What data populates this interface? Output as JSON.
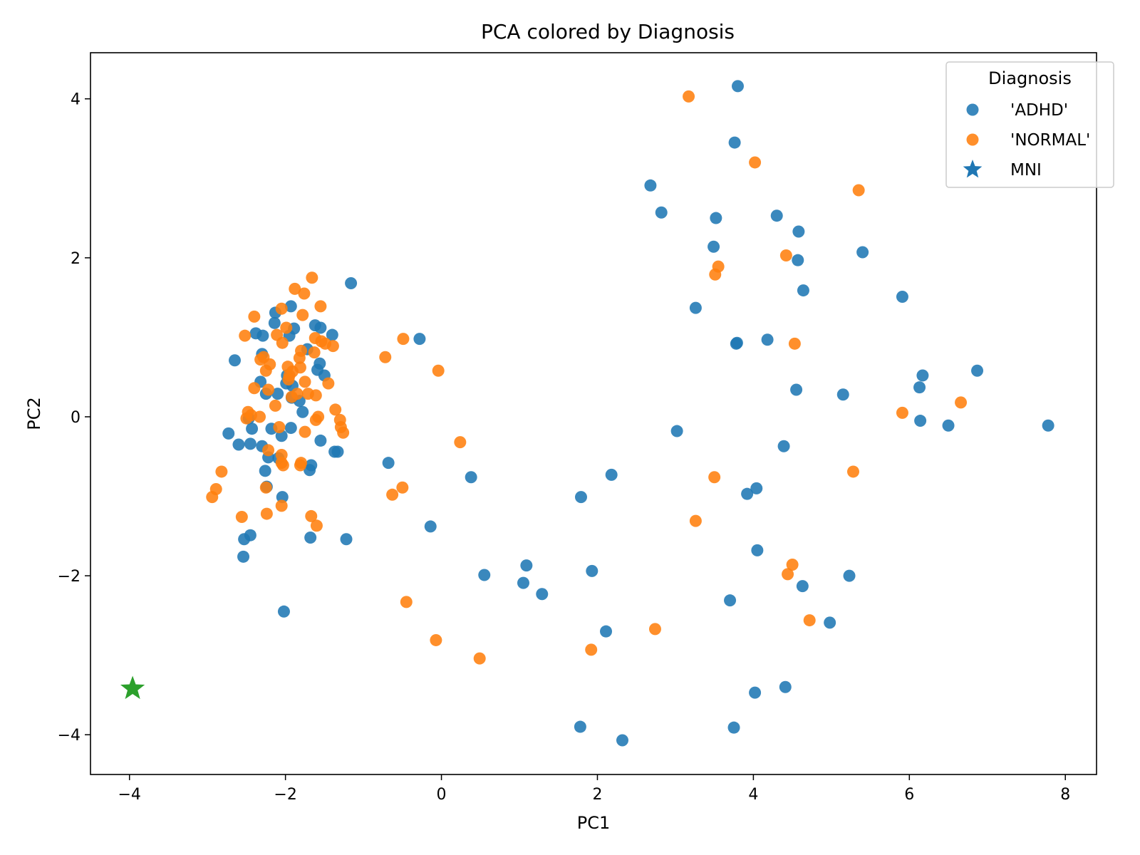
{
  "chart_data": {
    "type": "scatter",
    "title": "PCA colored by Diagnosis",
    "xlabel": "PC1",
    "ylabel": "PC2",
    "xlim": [
      -4.5,
      8.4
    ],
    "ylim": [
      -4.5,
      4.58
    ],
    "xticks": [
      -4,
      -2,
      0,
      2,
      4,
      6,
      8
    ],
    "yticks": [
      -4,
      -2,
      0,
      2,
      4
    ],
    "grid": false,
    "legend": {
      "title": "Diagnosis",
      "position": "top-right"
    },
    "series": [
      {
        "name": "'ADHD'",
        "color": "#1f77b4",
        "marker": "circle",
        "points": [
          [
            -2.65,
            0.71
          ],
          [
            -2.73,
            -0.21
          ],
          [
            -2.6,
            -0.35
          ],
          [
            -2.45,
            -0.34
          ],
          [
            -2.43,
            -0.15
          ],
          [
            -2.47,
            -0.02
          ],
          [
            -2.38,
            1.05
          ],
          [
            -2.29,
            1.02
          ],
          [
            -2.3,
            0.79
          ],
          [
            -2.32,
            0.44
          ],
          [
            -2.3,
            -0.37
          ],
          [
            -2.25,
            0.29
          ],
          [
            -2.18,
            -0.15
          ],
          [
            -2.22,
            -0.51
          ],
          [
            -2.26,
            -0.68
          ],
          [
            -2.24,
            -0.88
          ],
          [
            -2.14,
            1.18
          ],
          [
            -2.13,
            1.31
          ],
          [
            -2.1,
            0.29
          ],
          [
            -2.05,
            -0.24
          ],
          [
            -2.09,
            -0.52
          ],
          [
            -2.04,
            -1.01
          ],
          [
            -1.99,
            0.42
          ],
          [
            -1.98,
            0.52
          ],
          [
            -1.95,
            1.02
          ],
          [
            -1.93,
            1.39
          ],
          [
            -1.89,
            1.11
          ],
          [
            -1.92,
            0.24
          ],
          [
            -1.91,
            0.39
          ],
          [
            -1.93,
            -0.14
          ],
          [
            -1.82,
            0.2
          ],
          [
            -1.78,
            0.06
          ],
          [
            -1.72,
            0.85
          ],
          [
            -1.62,
            1.15
          ],
          [
            -1.55,
            1.12
          ],
          [
            -1.59,
            0.59
          ],
          [
            -1.56,
            0.67
          ],
          [
            -1.5,
            0.52
          ],
          [
            -1.55,
            -0.3
          ],
          [
            -1.67,
            -0.61
          ],
          [
            -1.69,
            -0.67
          ],
          [
            -1.68,
            -1.52
          ],
          [
            -1.4,
            1.03
          ],
          [
            -1.37,
            -0.44
          ],
          [
            -1.33,
            -0.44
          ],
          [
            -1.22,
            -1.54
          ],
          [
            -1.16,
            1.68
          ],
          [
            -2.53,
            -1.54
          ],
          [
            -2.45,
            -1.49
          ],
          [
            -2.54,
            -1.76
          ],
          [
            -2.02,
            -2.45
          ],
          [
            -0.68,
            -0.58
          ],
          [
            -0.28,
            0.98
          ],
          [
            -0.14,
            -1.38
          ],
          [
            0.38,
            -0.76
          ],
          [
            0.55,
            -1.99
          ],
          [
            1.05,
            -2.09
          ],
          [
            1.09,
            -1.87
          ],
          [
            1.29,
            -2.23
          ],
          [
            1.79,
            -1.01
          ],
          [
            1.93,
            -1.94
          ],
          [
            2.11,
            -2.7
          ],
          [
            2.18,
            -0.73
          ],
          [
            1.78,
            -3.9
          ],
          [
            2.32,
            -4.07
          ],
          [
            2.68,
            2.91
          ],
          [
            2.82,
            2.57
          ],
          [
            3.02,
            -0.18
          ],
          [
            3.26,
            1.37
          ],
          [
            3.49,
            2.14
          ],
          [
            3.52,
            2.5
          ],
          [
            3.76,
            3.45
          ],
          [
            3.8,
            4.16
          ],
          [
            3.79,
            0.93
          ],
          [
            3.78,
            0.92
          ],
          [
            3.92,
            -0.97
          ],
          [
            4.04,
            -0.9
          ],
          [
            4.05,
            -1.68
          ],
          [
            3.7,
            -2.31
          ],
          [
            3.75,
            -3.91
          ],
          [
            4.02,
            -3.47
          ],
          [
            4.18,
            0.97
          ],
          [
            4.3,
            2.53
          ],
          [
            4.39,
            -0.37
          ],
          [
            4.41,
            -3.4
          ],
          [
            4.55,
            0.34
          ],
          [
            4.57,
            1.97
          ],
          [
            4.58,
            2.33
          ],
          [
            4.64,
            1.59
          ],
          [
            4.63,
            -2.13
          ],
          [
            4.98,
            -2.59
          ],
          [
            5.15,
            0.28
          ],
          [
            5.23,
            -2.0
          ],
          [
            5.4,
            2.07
          ],
          [
            5.91,
            1.51
          ],
          [
            6.13,
            0.37
          ],
          [
            6.14,
            -0.05
          ],
          [
            6.17,
            0.52
          ],
          [
            6.5,
            -0.11
          ],
          [
            6.87,
            0.58
          ],
          [
            7.78,
            -0.11
          ]
        ]
      },
      {
        "name": "'NORMAL'",
        "color": "#ff7f0e",
        "marker": "circle",
        "points": [
          [
            -2.94,
            -1.01
          ],
          [
            -2.89,
            -0.91
          ],
          [
            -2.82,
            -0.69
          ],
          [
            -2.56,
            -1.26
          ],
          [
            -2.52,
            1.02
          ],
          [
            -2.48,
            0.06
          ],
          [
            -2.5,
            -0.02
          ],
          [
            -2.44,
            0.02
          ],
          [
            -2.4,
            1.26
          ],
          [
            -2.4,
            0.36
          ],
          [
            -2.32,
            0.72
          ],
          [
            -2.33,
            0.0
          ],
          [
            -2.28,
            0.75
          ],
          [
            -2.25,
            -0.89
          ],
          [
            -2.24,
            -1.22
          ],
          [
            -2.22,
            0.34
          ],
          [
            -2.22,
            -0.42
          ],
          [
            -2.25,
            0.58
          ],
          [
            -2.2,
            0.66
          ],
          [
            -2.11,
            1.03
          ],
          [
            -2.13,
            0.14
          ],
          [
            -2.08,
            -0.13
          ],
          [
            -2.05,
            -0.48
          ],
          [
            -2.04,
            0.93
          ],
          [
            -2.05,
            -0.58
          ],
          [
            -2.05,
            1.36
          ],
          [
            -2.03,
            -0.61
          ],
          [
            -2.05,
            -1.12
          ],
          [
            -1.99,
            1.12
          ],
          [
            -1.97,
            0.63
          ],
          [
            -1.95,
            0.52
          ],
          [
            -1.96,
            0.47
          ],
          [
            -1.92,
            0.25
          ],
          [
            -1.91,
            0.57
          ],
          [
            -1.88,
            1.61
          ],
          [
            -1.85,
            0.29
          ],
          [
            -1.82,
            0.74
          ],
          [
            -1.81,
            0.62
          ],
          [
            -1.8,
            -0.58
          ],
          [
            -1.81,
            -0.61
          ],
          [
            -1.8,
            0.83
          ],
          [
            -1.78,
            1.28
          ],
          [
            -1.76,
            1.55
          ],
          [
            -1.75,
            0.44
          ],
          [
            -1.75,
            -0.19
          ],
          [
            -1.71,
            0.29
          ],
          [
            -1.66,
            1.75
          ],
          [
            -1.67,
            -1.25
          ],
          [
            -1.63,
            0.81
          ],
          [
            -1.62,
            0.99
          ],
          [
            -1.61,
            0.27
          ],
          [
            -1.61,
            -0.04
          ],
          [
            -1.58,
            0.0
          ],
          [
            -1.6,
            -1.37
          ],
          [
            -1.55,
            1.39
          ],
          [
            -1.54,
            0.95
          ],
          [
            -1.49,
            0.92
          ],
          [
            -1.45,
            0.42
          ],
          [
            -1.39,
            0.89
          ],
          [
            -1.36,
            0.09
          ],
          [
            -1.3,
            -0.04
          ],
          [
            -1.29,
            -0.13
          ],
          [
            -1.26,
            -0.2
          ],
          [
            -0.72,
            0.75
          ],
          [
            -0.63,
            -0.98
          ],
          [
            -0.5,
            -0.89
          ],
          [
            -0.49,
            0.98
          ],
          [
            -0.45,
            -2.33
          ],
          [
            -0.07,
            -2.81
          ],
          [
            -0.04,
            0.58
          ],
          [
            0.24,
            -0.32
          ],
          [
            0.49,
            -3.04
          ],
          [
            1.92,
            -2.93
          ],
          [
            2.74,
            -2.67
          ],
          [
            3.17,
            4.03
          ],
          [
            3.26,
            -1.31
          ],
          [
            3.5,
            -0.76
          ],
          [
            3.51,
            1.79
          ],
          [
            3.55,
            1.89
          ],
          [
            4.02,
            3.2
          ],
          [
            4.42,
            2.03
          ],
          [
            4.44,
            -1.98
          ],
          [
            4.5,
            -1.86
          ],
          [
            4.53,
            0.92
          ],
          [
            4.72,
            -2.56
          ],
          [
            5.28,
            -0.69
          ],
          [
            5.35,
            2.85
          ],
          [
            5.91,
            0.05
          ],
          [
            6.66,
            0.18
          ]
        ]
      },
      {
        "name": "MNI",
        "color": "#2ca02c",
        "legend_color": "#1f77b4",
        "marker": "star",
        "points": [
          [
            -3.96,
            -3.42
          ]
        ]
      }
    ]
  }
}
